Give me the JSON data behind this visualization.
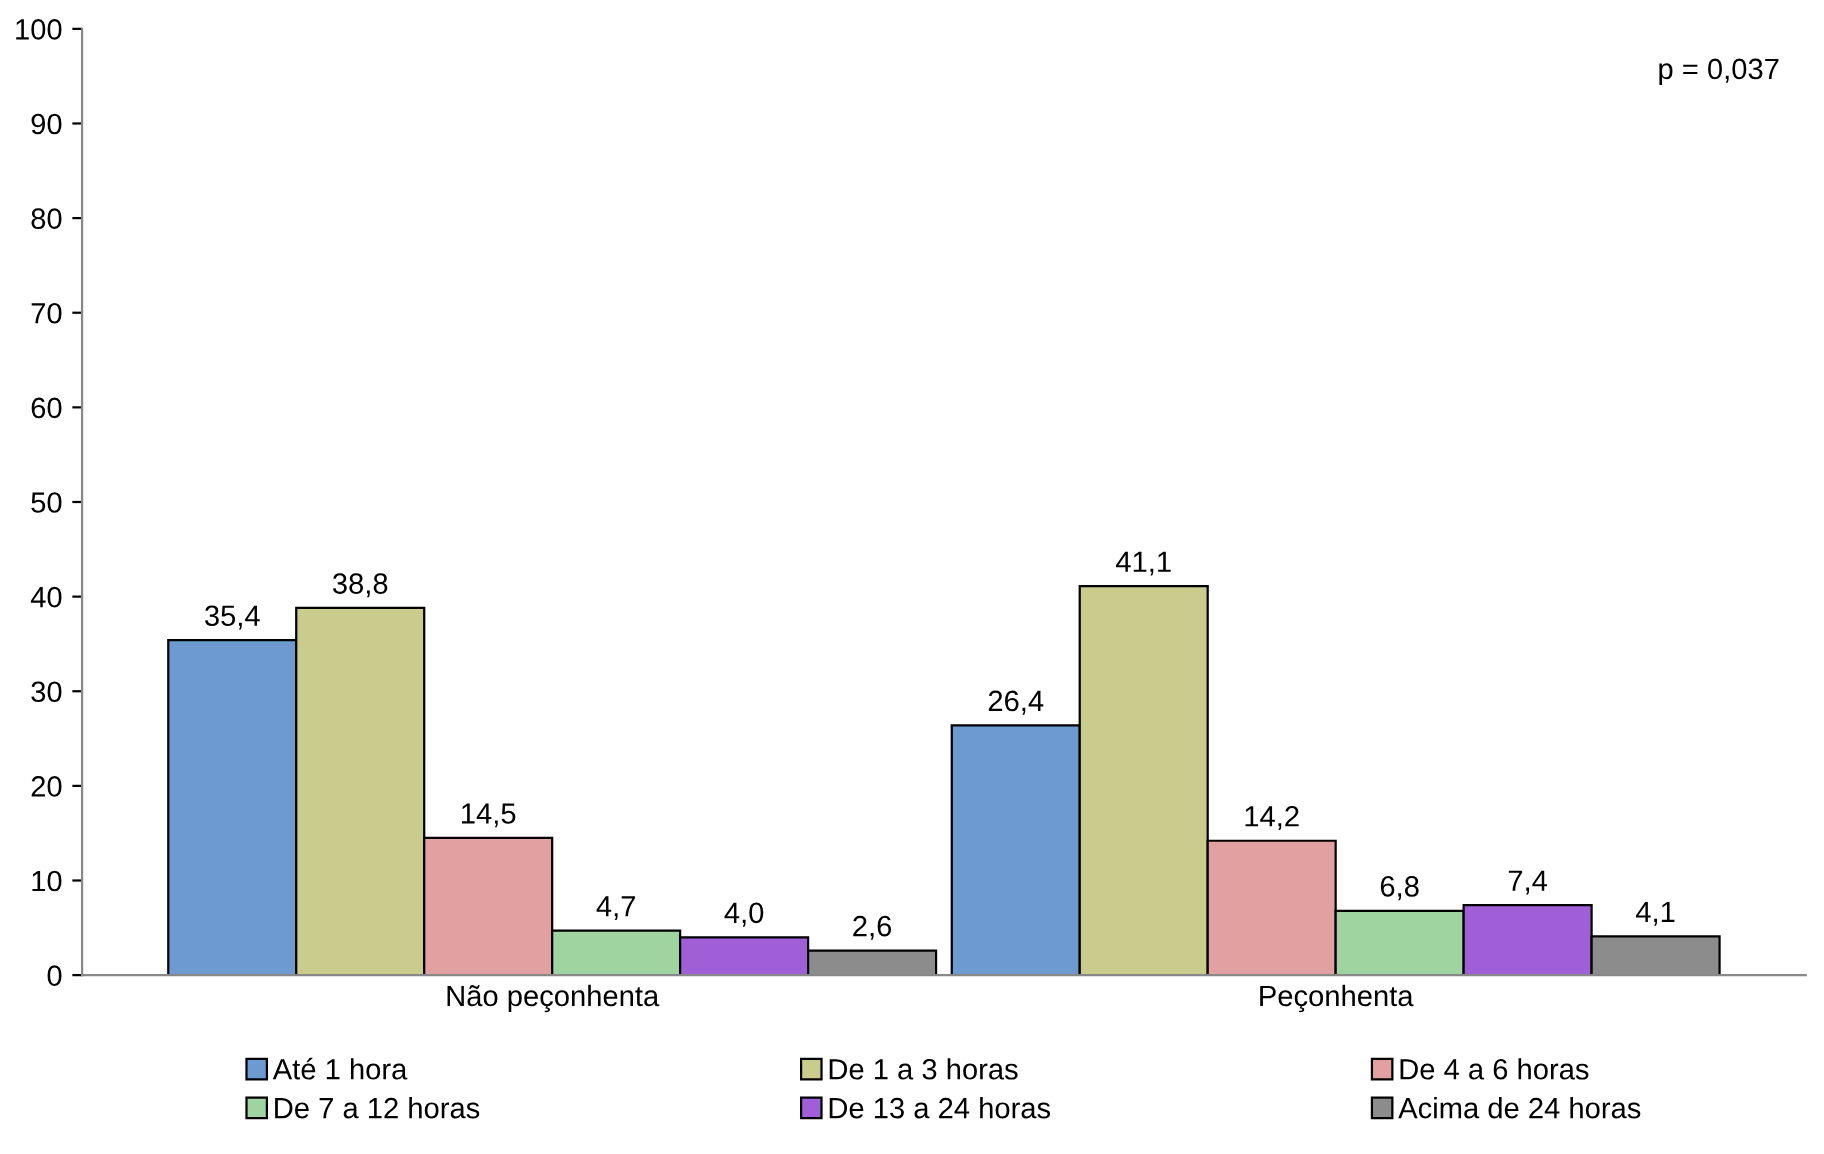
{
  "chart_data": {
    "type": "bar",
    "categories": [
      "Não peçonhenta",
      "Peçonhenta"
    ],
    "series": [
      {
        "name": "Até 1 hora",
        "color": "#6d9bd1",
        "values": [
          35.4,
          26.4
        ],
        "value_labels": [
          "35,4",
          "26,4"
        ]
      },
      {
        "name": "De 1 a 3 horas",
        "color": "#c9cc8c",
        "values": [
          38.8,
          41.1
        ],
        "value_labels": [
          "38,8",
          "41,1"
        ]
      },
      {
        "name": "De 4 a 6 horas",
        "color": "#e3a0a0",
        "values": [
          14.5,
          14.2
        ],
        "value_labels": [
          "14,5",
          "14,2"
        ]
      },
      {
        "name": "De 7 a 12 horas",
        "color": "#9fd39f",
        "values": [
          4.7,
          6.8
        ],
        "value_labels": [
          "4,7",
          "6,8"
        ]
      },
      {
        "name": "De 13 a 24 horas",
        "color": "#a05fd6",
        "values": [
          4.0,
          7.4
        ],
        "value_labels": [
          "4,0",
          "7,4"
        ]
      },
      {
        "name": "Acima de 24 horas",
        "color": "#8c8c8c",
        "values": [
          2.6,
          4.1
        ],
        "value_labels": [
          "2,6",
          "4,1"
        ]
      }
    ],
    "ylim": [
      0,
      100
    ],
    "yticks": [
      0,
      10,
      20,
      30,
      40,
      50,
      60,
      70,
      80,
      90,
      100
    ],
    "grid": false,
    "legend": "bottom",
    "annotations": [
      "p = 0,037"
    ]
  }
}
